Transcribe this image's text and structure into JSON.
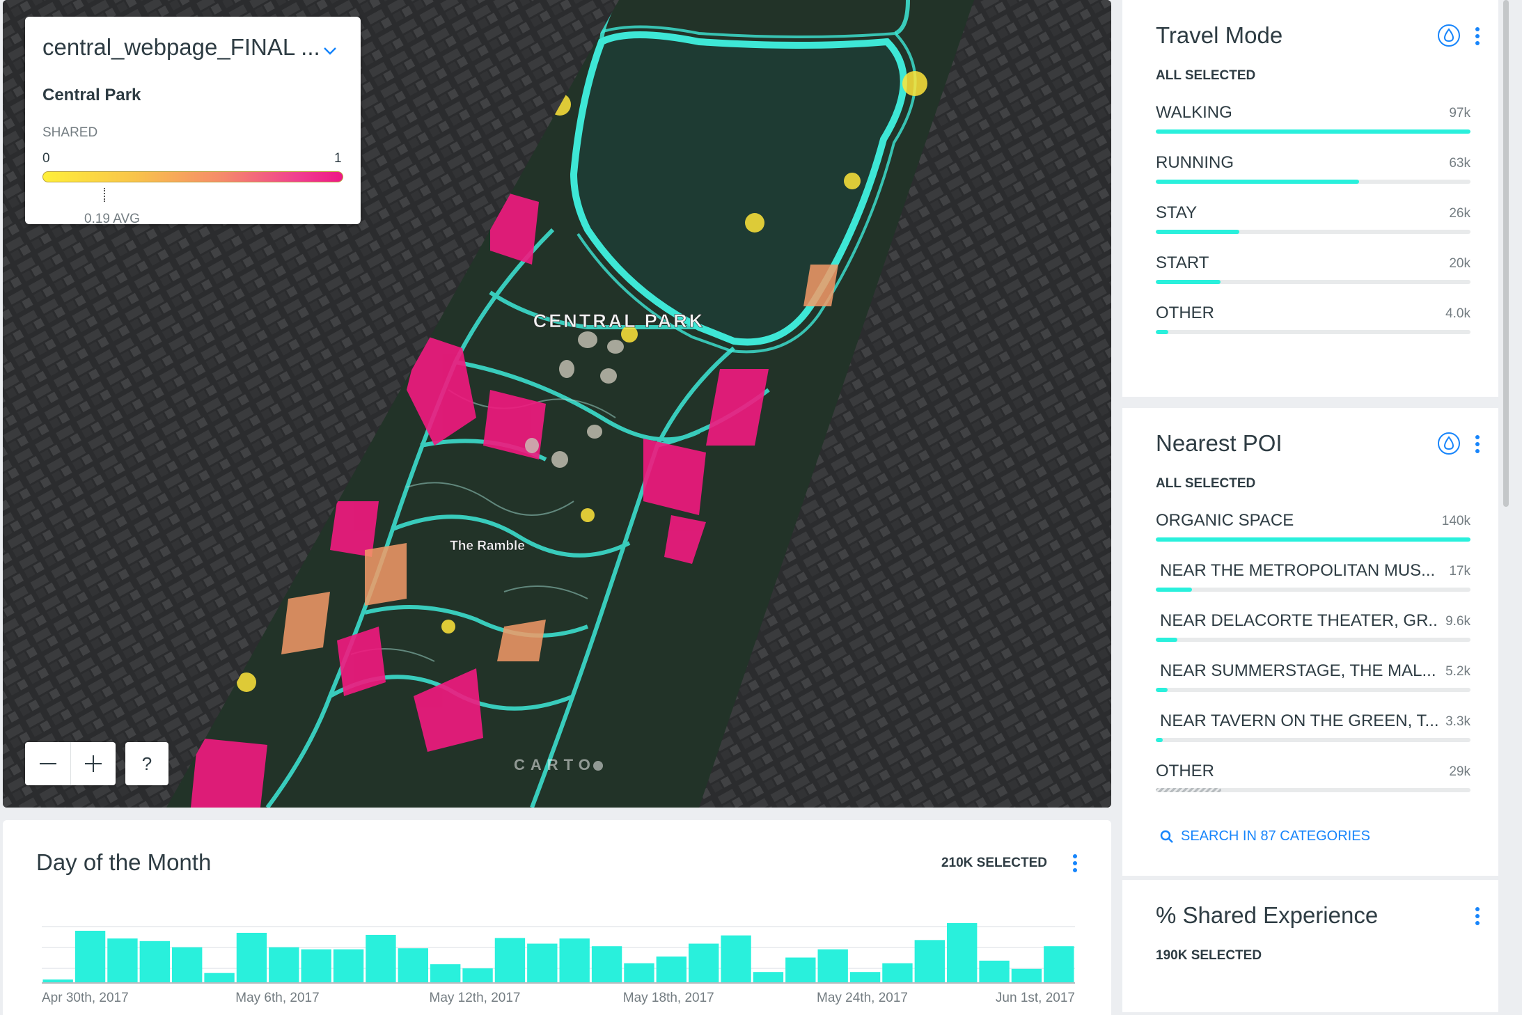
{
  "map": {
    "layer_card": {
      "title": "central_webpage_FINAL ...",
      "subtitle": "Central Park",
      "legend_label": "SHARED",
      "min": "0",
      "max": "1",
      "avg": "0.19 AVG",
      "avg_value": 0.19
    },
    "labels": {
      "park": "CENTRAL PARK",
      "ramble": "The Ramble"
    },
    "controls": {
      "zoom_out": "—",
      "zoom_in": "+",
      "help": "?"
    },
    "attribution": "CARTO"
  },
  "timeline": {
    "title": "Day of the Month",
    "selected": "210K SELECTED",
    "x_labels": [
      "Apr 30th, 2017",
      "May 6th, 2017",
      "May 12th, 2017",
      "May 18th, 2017",
      "May 24th, 2017",
      "Jun 1st, 2017"
    ]
  },
  "chart_data": {
    "type": "bar",
    "title": "Day of the Month",
    "x_tick_labels": [
      "Apr 30th, 2017",
      "May 6th, 2017",
      "May 12th, 2017",
      "May 18th, 2017",
      "May 24th, 2017",
      "Jun 1st, 2017"
    ],
    "values": [
      0.05,
      1.0,
      0.85,
      0.8,
      0.68,
      0.18,
      0.96,
      0.68,
      0.64,
      0.64,
      0.92,
      0.66,
      0.35,
      0.27,
      0.86,
      0.75,
      0.85,
      0.7,
      0.37,
      0.5,
      0.75,
      0.91,
      0.2,
      0.48,
      0.64,
      0.2,
      0.37,
      0.82,
      1.15,
      0.42,
      0.26,
      0.7
    ],
    "value_unit": "relative height",
    "color": "#29f0dc",
    "grid": true
  },
  "widgets": {
    "travel_mode": {
      "title": "Travel Mode",
      "subtitle": "ALL SELECTED",
      "items": [
        {
          "label": "WALKING",
          "value": "97k",
          "fraction": 1.0
        },
        {
          "label": "RUNNING",
          "value": "63k",
          "fraction": 0.645
        },
        {
          "label": "STAY",
          "value": "26k",
          "fraction": 0.265
        },
        {
          "label": "START",
          "value": "20k",
          "fraction": 0.205
        },
        {
          "label": "OTHER",
          "value": "4.0k",
          "fraction": 0.04
        }
      ]
    },
    "nearest_poi": {
      "title": "Nearest POI",
      "subtitle": "ALL SELECTED",
      "items": [
        {
          "label": "ORGANIC SPACE",
          "value": "140k",
          "fraction": 1.0
        },
        {
          "label": "NEAR THE METROPOLITAN MUS...",
          "value": "17k",
          "fraction": 0.115
        },
        {
          "label": "NEAR DELACORTE THEATER, GR...",
          "value": "9.6k",
          "fraction": 0.068
        },
        {
          "label": "NEAR SUMMERSTAGE, THE MAL...",
          "value": "5.2k",
          "fraction": 0.037
        },
        {
          "label": "NEAR TAVERN ON THE GREEN, T...",
          "value": "3.3k",
          "fraction": 0.023
        },
        {
          "label": "OTHER",
          "value": "29k",
          "fraction": 0.207
        }
      ],
      "search_link": "SEARCH IN 87 CATEGORIES"
    },
    "shared_experience": {
      "title": "% Shared Experience",
      "subtitle": "190K SELECTED"
    }
  },
  "colors": {
    "accent": "#1785fb",
    "bar": "#29f0dc",
    "ramp_start": "#ffef3a",
    "ramp_end": "#ee1786"
  }
}
